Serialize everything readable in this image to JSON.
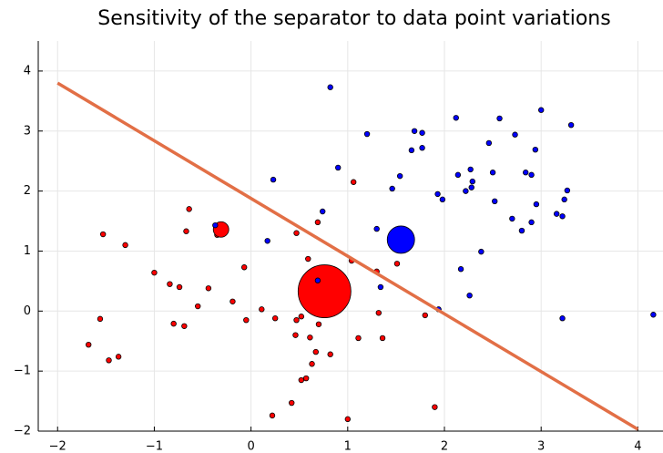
{
  "chart_data": {
    "type": "scatter",
    "title": "Sensitivity of the separator to data point variations",
    "xlim": [
      -2.2,
      4.26
    ],
    "ylim": [
      -2,
      4.5
    ],
    "xticks": [
      {
        "value": -2,
        "label": "−2"
      },
      {
        "value": -1,
        "label": "−1"
      },
      0,
      1,
      2,
      3,
      4
    ],
    "yticks": [
      {
        "value": -2,
        "label": "−2"
      },
      {
        "value": -1,
        "label": "−1"
      },
      0,
      1,
      2,
      3,
      4
    ],
    "grid": true,
    "series": [
      {
        "kind": "points",
        "color": "#ff0000",
        "size": 2.8,
        "x": [
          -1.53,
          -1.3,
          -0.64,
          -0.67,
          -0.35,
          0.69,
          1.06,
          0.47,
          0.59,
          1.04,
          1.3,
          1.48,
          1.51,
          -0.07,
          -1.0,
          -0.84,
          -0.74,
          -0.44,
          -0.55,
          -0.19,
          0.11,
          -0.05,
          0.25,
          -1.56,
          -0.8,
          -0.69,
          0.47,
          0.52,
          0.7,
          1.32,
          1.8,
          0.46,
          0.61,
          1.11,
          1.36,
          0.67,
          0.82,
          0.63,
          -1.68,
          -1.37,
          -1.47,
          0.52,
          0.57,
          0.42,
          0.22,
          1.0,
          1.9
        ],
        "y": [
          1.28,
          1.1,
          1.7,
          1.33,
          1.27,
          1.48,
          2.15,
          1.3,
          0.87,
          0.84,
          0.66,
          1.05,
          0.79,
          0.73,
          0.64,
          0.45,
          0.4,
          0.38,
          0.08,
          0.16,
          0.03,
          -0.15,
          -0.12,
          -0.13,
          -0.21,
          -0.25,
          -0.15,
          -0.09,
          -0.22,
          -0.03,
          -0.07,
          -0.4,
          -0.44,
          -0.45,
          -0.45,
          -0.68,
          -0.72,
          -0.88,
          -0.56,
          -0.76,
          -0.82,
          -1.15,
          -1.12,
          -1.53,
          -1.74,
          -1.8,
          -1.6
        ]
      },
      {
        "kind": "points",
        "color": "#ff0000",
        "size": 29,
        "x": [
          0.76
        ],
        "y": [
          0.33
        ]
      },
      {
        "kind": "points",
        "color": "#ff0000",
        "size": 8.5,
        "x": [
          -0.31
        ],
        "y": [
          1.36
        ]
      },
      {
        "kind": "points",
        "color": "#0000ff",
        "size": 2.8,
        "x": [
          0.82,
          1.2,
          1.69,
          1.77,
          2.12,
          2.57,
          3.0,
          3.31,
          2.73,
          2.46,
          1.66,
          1.77,
          2.94,
          0.9,
          0.23,
          1.54,
          1.46,
          2.14,
          2.27,
          2.29,
          2.28,
          2.22,
          2.5,
          2.84,
          2.9,
          1.93,
          1.98,
          2.52,
          3.27,
          3.24,
          2.95,
          2.7,
          2.8,
          2.9,
          3.16,
          3.22,
          0.74,
          0.17,
          1.3,
          -0.37,
          2.38,
          2.17,
          1.34,
          0.69,
          2.26,
          1.94,
          3.22,
          4.16
        ],
        "y": [
          3.73,
          2.95,
          3.0,
          2.97,
          3.22,
          3.21,
          3.35,
          3.1,
          2.94,
          2.8,
          2.68,
          2.72,
          2.69,
          2.39,
          2.19,
          2.25,
          2.04,
          2.27,
          2.36,
          2.16,
          2.06,
          2.0,
          2.31,
          2.31,
          2.27,
          1.95,
          1.86,
          1.83,
          2.01,
          1.86,
          1.78,
          1.54,
          1.34,
          1.48,
          1.62,
          1.58,
          1.66,
          1.17,
          1.37,
          1.43,
          0.99,
          0.7,
          0.4,
          0.51,
          0.26,
          0.03,
          -0.12,
          -0.06
        ]
      },
      {
        "kind": "points",
        "color": "#0000ff",
        "size": 15,
        "x": [
          1.55
        ],
        "y": [
          1.19
        ]
      },
      {
        "kind": "line",
        "color": "#e26f46",
        "x": [
          -2,
          4
        ],
        "y": [
          3.8,
          -1.97
        ]
      }
    ]
  }
}
